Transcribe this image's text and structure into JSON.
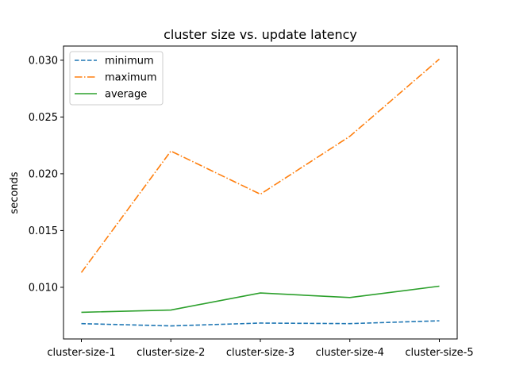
{
  "chart_data": {
    "type": "line",
    "title": "cluster size vs. update latency",
    "xlabel": "",
    "ylabel": "seconds",
    "categories": [
      "cluster-size-1",
      "cluster-size-2",
      "cluster-size-3",
      "cluster-size-4",
      "cluster-size-5"
    ],
    "series": [
      {
        "name": "minimum",
        "values": [
          0.0068,
          0.0066,
          0.00685,
          0.0068,
          0.00705
        ],
        "color": "#1f77b4",
        "dash": "dashed"
      },
      {
        "name": "maximum",
        "values": [
          0.0113,
          0.022,
          0.0182,
          0.0233,
          0.0301
        ],
        "color": "#ff7f0e",
        "dash": "dashdot"
      },
      {
        "name": "average",
        "values": [
          0.0078,
          0.008,
          0.0095,
          0.0091,
          0.0101
        ],
        "color": "#2ca02c",
        "dash": "solid"
      }
    ],
    "yticks": [
      "0.010",
      "0.015",
      "0.020",
      "0.025",
      "0.030"
    ],
    "ylim": [
      0.00545,
      0.03125
    ],
    "grid": false,
    "legend_position": "top-left"
  }
}
